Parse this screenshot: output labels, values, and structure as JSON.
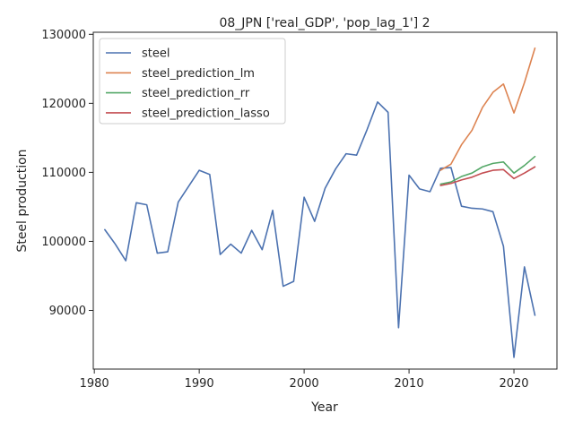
{
  "chart_data": {
    "type": "line",
    "title": "08_JPN ['real_GDP', 'pop_lag_1'] 2",
    "xlabel": "Year",
    "ylabel": "Steel production",
    "xlim": [
      1979.9,
      2024.1
    ],
    "ylim": [
      81500,
      130300
    ],
    "x_ticks": [
      1980,
      1990,
      2000,
      2010,
      2020
    ],
    "y_ticks": [
      90000,
      100000,
      110000,
      120000,
      130000
    ],
    "x_tick_labels": [
      "1980",
      "1990",
      "2000",
      "2010",
      "2020"
    ],
    "y_tick_labels": [
      "90000",
      "100000",
      "110000",
      "120000",
      "130000"
    ],
    "grid": false,
    "legend_position": "top-left",
    "series": [
      {
        "name": "steel",
        "color": "#4c72b0",
        "x": [
          1981,
          1982,
          1983,
          1984,
          1985,
          1986,
          1987,
          1988,
          1989,
          1990,
          1991,
          1992,
          1993,
          1994,
          1995,
          1996,
          1997,
          1998,
          1999,
          2000,
          2001,
          2002,
          2003,
          2004,
          2005,
          2006,
          2007,
          2008,
          2009,
          2010,
          2011,
          2012,
          2013,
          2014,
          2015,
          2016,
          2017,
          2018,
          2019,
          2020,
          2021,
          2022
        ],
        "y": [
          101700,
          99600,
          97200,
          105600,
          105300,
          98300,
          98500,
          105700,
          108000,
          110300,
          109700,
          98100,
          99600,
          98300,
          101600,
          98800,
          104500,
          93500,
          94200,
          106400,
          102900,
          107700,
          110500,
          112700,
          112500,
          116200,
          120200,
          118700,
          87500,
          109600,
          107600,
          107200,
          110600,
          110700,
          105100,
          104800,
          104700,
          104300,
          99300,
          83200,
          96300,
          89300
        ]
      },
      {
        "name": "steel_prediction_lm",
        "color": "#dd8452",
        "x": [
          2013,
          2014,
          2015,
          2016,
          2017,
          2018,
          2019,
          2020,
          2021,
          2022
        ],
        "y": [
          110300,
          111200,
          114000,
          116100,
          119400,
          121600,
          122800,
          118600,
          123000,
          128000
        ]
      },
      {
        "name": "steel_prediction_rr",
        "color": "#55a868",
        "x": [
          2013,
          2014,
          2015,
          2016,
          2017,
          2018,
          2019,
          2020,
          2021,
          2022
        ],
        "y": [
          108300,
          108600,
          109400,
          109900,
          110800,
          111300,
          111500,
          109900,
          111000,
          112300
        ]
      },
      {
        "name": "steel_prediction_lasso",
        "color": "#c44e52",
        "x": [
          2013,
          2014,
          2015,
          2016,
          2017,
          2018,
          2019,
          2020,
          2021,
          2022
        ],
        "y": [
          108100,
          108400,
          108900,
          109300,
          109900,
          110300,
          110400,
          109100,
          109900,
          110800
        ]
      }
    ]
  }
}
